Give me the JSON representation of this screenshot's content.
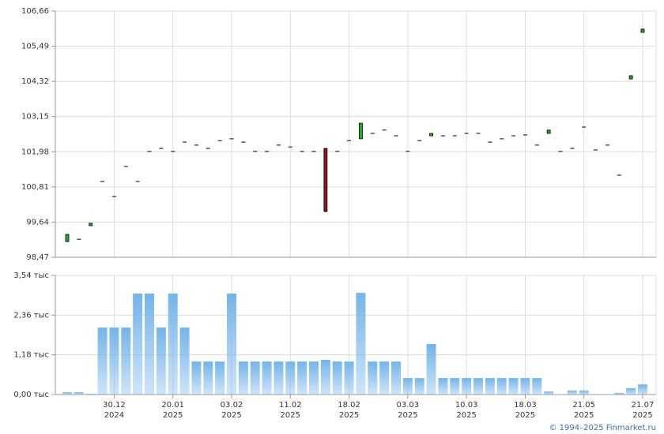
{
  "chart_data": [
    {
      "type": "candlestick",
      "up_color": "#22b022",
      "down_color": "#8b1a1a",
      "open": [
        98.99,
        99.07,
        99.52,
        100.99,
        100.49,
        101.49,
        100.99,
        101.99,
        102.09,
        101.99,
        102.3,
        102.2,
        102.09,
        102.35,
        102.41,
        102.3,
        101.99,
        101.99,
        102.2,
        102.14,
        101.99,
        101.99,
        102.09,
        101.99,
        102.35,
        102.41,
        102.59,
        102.7,
        102.51,
        101.99,
        102.35,
        102.51,
        102.51,
        102.51,
        102.59,
        102.59,
        102.3,
        102.41,
        102.51,
        102.54,
        102.2,
        102.59,
        101.99,
        102.09,
        102.8,
        102.04,
        102.2,
        101.2,
        104.4,
        105.95
      ],
      "close": [
        99.23,
        99.07,
        99.6,
        100.99,
        100.49,
        101.49,
        100.99,
        101.99,
        102.09,
        101.99,
        102.3,
        102.2,
        102.09,
        102.35,
        102.41,
        102.3,
        101.99,
        101.99,
        102.2,
        102.14,
        101.99,
        101.99,
        99.99,
        101.99,
        102.35,
        102.93,
        102.59,
        102.7,
        102.51,
        101.99,
        102.35,
        102.59,
        102.51,
        102.51,
        102.59,
        102.59,
        102.3,
        102.41,
        102.51,
        102.54,
        102.2,
        102.7,
        101.99,
        102.09,
        102.8,
        102.04,
        102.2,
        101.2,
        104.51,
        106.06
      ],
      "ylim": [
        98.47,
        106.66
      ],
      "yticks": [
        {
          "value": 98.47,
          "label": "98,47"
        },
        {
          "value": 99.64,
          "label": "99,64"
        },
        {
          "value": 100.81,
          "label": "100,81"
        },
        {
          "value": 101.98,
          "label": "101,98"
        },
        {
          "value": 103.15,
          "label": "103,15"
        },
        {
          "value": 104.32,
          "label": "104,32"
        },
        {
          "value": 105.49,
          "label": "105,49"
        },
        {
          "value": 106.66,
          "label": "106,66"
        }
      ],
      "grid": true
    },
    {
      "type": "bar",
      "categories": [
        null,
        null,
        null,
        null,
        "30.12",
        null,
        null,
        null,
        null,
        "20.01",
        null,
        null,
        null,
        null,
        "03.02",
        null,
        null,
        null,
        null,
        "11.02",
        null,
        null,
        null,
        null,
        "18.02",
        null,
        null,
        null,
        null,
        "03.03",
        null,
        null,
        null,
        null,
        "10.03",
        null,
        null,
        null,
        null,
        "18.03",
        null,
        null,
        null,
        null,
        "21.05",
        null,
        null,
        null,
        null,
        "21.07"
      ],
      "category_years": [
        null,
        null,
        null,
        null,
        "2024",
        null,
        null,
        null,
        null,
        "2025",
        null,
        null,
        null,
        null,
        "2025",
        null,
        null,
        null,
        null,
        "2025",
        null,
        null,
        null,
        null,
        "2025",
        null,
        null,
        null,
        null,
        "2025",
        null,
        null,
        null,
        null,
        "2025",
        null,
        null,
        null,
        null,
        "2025",
        null,
        null,
        null,
        null,
        "2025",
        null,
        null,
        null,
        null,
        "2025"
      ],
      "values": [
        0.07,
        0.07,
        0.02,
        1.99,
        1.99,
        1.99,
        3.0,
        3.0,
        1.99,
        3.0,
        1.99,
        0.98,
        0.98,
        0.98,
        3.0,
        0.98,
        0.98,
        0.98,
        0.98,
        0.98,
        0.98,
        0.98,
        1.03,
        0.98,
        0.98,
        3.02,
        0.98,
        0.98,
        0.98,
        0.49,
        0.49,
        1.5,
        0.49,
        0.49,
        0.49,
        0.49,
        0.49,
        0.49,
        0.49,
        0.49,
        0.49,
        0.09,
        0.01,
        0.12,
        0.12,
        0.01,
        0.01,
        0.05,
        0.19,
        0.3
      ],
      "color": "#74b4ea",
      "ylim": [
        0,
        3.54
      ],
      "yticks": [
        {
          "value": 0,
          "label": "0,00 тыс"
        },
        {
          "value": 1.18,
          "label": "1,18 тыс"
        },
        {
          "value": 2.36,
          "label": "2,36 тыс"
        },
        {
          "value": 3.54,
          "label": "3,54 тыс"
        }
      ],
      "grid": true
    }
  ],
  "footer": "© 1994–2025 Finmarket.ru"
}
